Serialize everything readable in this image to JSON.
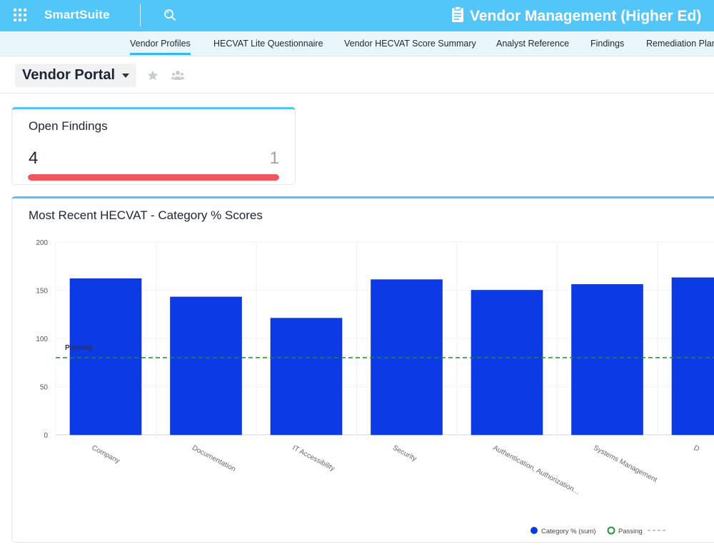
{
  "header": {
    "brand": "SmartSuite",
    "app_title": "Vendor Management (Higher Ed)",
    "icons": {
      "apps": "apps-grid-icon",
      "search": "search-icon",
      "app": "clipboard-icon"
    }
  },
  "tabs": [
    {
      "label": "Vendor Profiles",
      "active": true
    },
    {
      "label": "HECVAT Lite Questionnaire",
      "active": false
    },
    {
      "label": "Vendor HECVAT Score Summary",
      "active": false
    },
    {
      "label": "Analyst Reference",
      "active": false
    },
    {
      "label": "Findings",
      "active": false
    },
    {
      "label": "Remediation Plan",
      "active": false
    }
  ],
  "page": {
    "title": "Vendor Portal",
    "icons": {
      "favorite": "star-icon",
      "share": "people-icon"
    }
  },
  "findings_widget": {
    "title": "Open Findings",
    "count": "4",
    "secondary": "1",
    "progress_fraction": 1.0,
    "progress_color": "#f0565e"
  },
  "chart_widget": {
    "title": "Most Recent HECVAT - Category % Scores"
  },
  "chart_data": {
    "type": "bar",
    "categories": [
      "Company",
      "Documentation",
      "IT Accessibility",
      "Security",
      "Authentication, Authorization...",
      "Systems Management",
      "D"
    ],
    "series": [
      {
        "name": "Category % (sum)",
        "values": [
          162,
          143,
          121,
          161,
          150,
          156,
          163
        ],
        "color": "#0c3be6"
      }
    ],
    "reference_line": {
      "name": "Passing",
      "value": 80,
      "color": "#1a8a2a"
    },
    "ylim": [
      0,
      200
    ],
    "yticks": [
      "0",
      "50",
      "100",
      "150",
      "200"
    ],
    "xlabel": "",
    "ylabel": "",
    "legend": [
      {
        "label": "Category % (sum)"
      },
      {
        "label": "Passing"
      }
    ],
    "legend_position": "bottom-right",
    "grid": true
  }
}
